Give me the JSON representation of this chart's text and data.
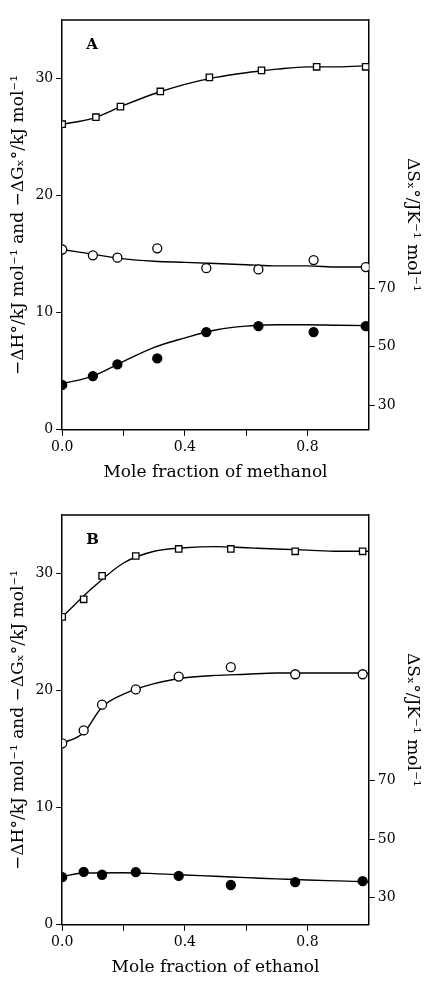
{
  "chart_data": [
    {
      "type": "scatter",
      "annotations": [
        "A"
      ],
      "xlabel": "Mole fraction of methanol",
      "ylabel": "−ΔH°/kJ mol⁻¹ and −ΔGₓ°/kJ mol⁻¹",
      "y2label": "ΔSₓ°/JK⁻¹ mol⁻¹",
      "xlim": [
        0,
        1
      ],
      "xticks": [
        {
          "value": 0,
          "label": "0.0"
        },
        {
          "value": 0.2,
          "label": null
        },
        {
          "value": 0.4,
          "label": "0.4"
        },
        {
          "value": 0.6,
          "label": null
        },
        {
          "value": 0.8,
          "label": "0.8"
        }
      ],
      "ylim": [
        0,
        35
      ],
      "yticks": [
        0,
        10,
        20,
        30
      ],
      "y2lim": [
        21.7,
        161.3
      ],
      "y2ticks": [
        30,
        50,
        70
      ],
      "grid": false,
      "legend": false,
      "series": [
        {
          "marker": "square",
          "color": "#ffffff",
          "x": [
            0,
            0.11,
            0.19,
            0.32,
            0.48,
            0.65,
            0.83,
            0.99
          ],
          "values": [
            26.1,
            26.7,
            27.6,
            28.9,
            30.1,
            30.7,
            31.0,
            31.0
          ]
        },
        {
          "marker": "circle",
          "color": "#ffffff",
          "x": [
            0,
            0.1,
            0.18,
            0.31,
            0.47,
            0.64,
            0.82,
            0.99
          ],
          "values": [
            15.4,
            14.9,
            14.7,
            15.5,
            13.8,
            13.7,
            14.5,
            13.9
          ]
        },
        {
          "marker": "circle",
          "color": "#000000",
          "axis": "y2",
          "x": [
            0,
            0.1,
            0.18,
            0.31,
            0.47,
            0.64,
            0.82,
            0.99
          ],
          "values": [
            37,
            40,
            44,
            46,
            55,
            57,
            55,
            57
          ]
        },
        {
          "type": "line",
          "marker": "none",
          "color": "#000000",
          "x": [
            0,
            0.1,
            0.2,
            0.3,
            0.4,
            0.5,
            0.6,
            0.7,
            0.8,
            0.9,
            1.0
          ],
          "values": [
            26.1,
            26.6,
            27.7,
            28.7,
            29.5,
            30.1,
            30.5,
            30.8,
            31.0,
            31.0,
            31.1
          ]
        },
        {
          "type": "line",
          "marker": "none",
          "color": "#000000",
          "x": [
            0,
            0.1,
            0.2,
            0.3,
            0.4,
            0.5,
            0.6,
            0.7,
            0.8,
            0.9,
            1.0
          ],
          "values": [
            15.4,
            15.0,
            14.6,
            14.4,
            14.3,
            14.2,
            14.1,
            14.0,
            14.0,
            13.9,
            13.9
          ]
        },
        {
          "type": "line",
          "marker": "none",
          "color": "#000000",
          "axis": "y2",
          "x": [
            0,
            0.1,
            0.2,
            0.3,
            0.4,
            0.5,
            0.6,
            0.7,
            0.8,
            0.9,
            1.0
          ],
          "values": [
            37.4,
            40,
            45,
            49.8,
            53,
            55.7,
            57,
            57.5,
            57.5,
            57.3,
            57.2
          ]
        }
      ]
    },
    {
      "type": "scatter",
      "annotations": [
        "B"
      ],
      "xlabel": "Mole fraction of ethanol",
      "ylabel": "−ΔH°/kJ mol⁻¹ and −ΔGₓ°/kJ mol⁻¹",
      "y2label": "ΔSₓ°/JK⁻¹ mol⁻¹",
      "xlim": [
        0,
        1
      ],
      "xticks": [
        {
          "value": 0,
          "label": "0.0"
        },
        {
          "value": 0.2,
          "label": null
        },
        {
          "value": 0.4,
          "label": "0.4"
        },
        {
          "value": 0.6,
          "label": null
        },
        {
          "value": 0.8,
          "label": "0.8"
        }
      ],
      "ylim": [
        0,
        35
      ],
      "yticks": [
        0,
        10,
        20,
        30
      ],
      "y2lim": [
        20.7,
        160.7
      ],
      "y2ticks": [
        30,
        50,
        70
      ],
      "grid": false,
      "legend": false,
      "series": [
        {
          "marker": "square",
          "color": "#ffffff",
          "x": [
            0,
            0.07,
            0.13,
            0.24,
            0.38,
            0.55,
            0.76,
            0.98
          ],
          "values": [
            26.3,
            27.8,
            29.8,
            31.5,
            32.1,
            32.1,
            31.9,
            31.9
          ]
        },
        {
          "marker": "circle",
          "color": "#ffffff",
          "x": [
            0,
            0.07,
            0.13,
            0.24,
            0.38,
            0.55,
            0.76,
            0.98
          ],
          "values": [
            15.5,
            16.6,
            18.8,
            20.1,
            21.2,
            22.0,
            21.4,
            21.4
          ]
        },
        {
          "marker": "circle",
          "color": "#000000",
          "axis": "y2",
          "x": [
            0,
            0.07,
            0.13,
            0.24,
            0.38,
            0.55,
            0.76,
            0.98
          ],
          "values": [
            37.0,
            38.8,
            37.8,
            38.7,
            37.4,
            34.3,
            35.3,
            35.6
          ]
        },
        {
          "type": "line",
          "marker": "none",
          "color": "#000000",
          "x": [
            0,
            0.1,
            0.2,
            0.3,
            0.4,
            0.5,
            0.6,
            0.7,
            0.8,
            0.9,
            1.0
          ],
          "values": [
            26.3,
            28.8,
            30.9,
            31.9,
            32.2,
            32.3,
            32.2,
            32.1,
            32.0,
            31.9,
            31.9
          ]
        },
        {
          "type": "line",
          "marker": "none",
          "color": "#000000",
          "x": [
            0,
            0.07,
            0.13,
            0.2,
            0.3,
            0.4,
            0.5,
            0.6,
            0.7,
            0.8,
            1.0
          ],
          "values": [
            15.5,
            16.4,
            18.6,
            19.7,
            20.6,
            21.1,
            21.3,
            21.4,
            21.5,
            21.5,
            21.5
          ]
        },
        {
          "type": "line",
          "marker": "none",
          "color": "#000000",
          "axis": "y2",
          "x": [
            0,
            0.07,
            0.2,
            0.3,
            0.4,
            0.5,
            0.6,
            0.7,
            0.8,
            0.9,
            1.0
          ],
          "values": [
            37.2,
            38.4,
            38.5,
            38.2,
            37.7,
            37.3,
            36.8,
            36.4,
            36.0,
            35.7,
            35.4
          ]
        }
      ]
    }
  ]
}
